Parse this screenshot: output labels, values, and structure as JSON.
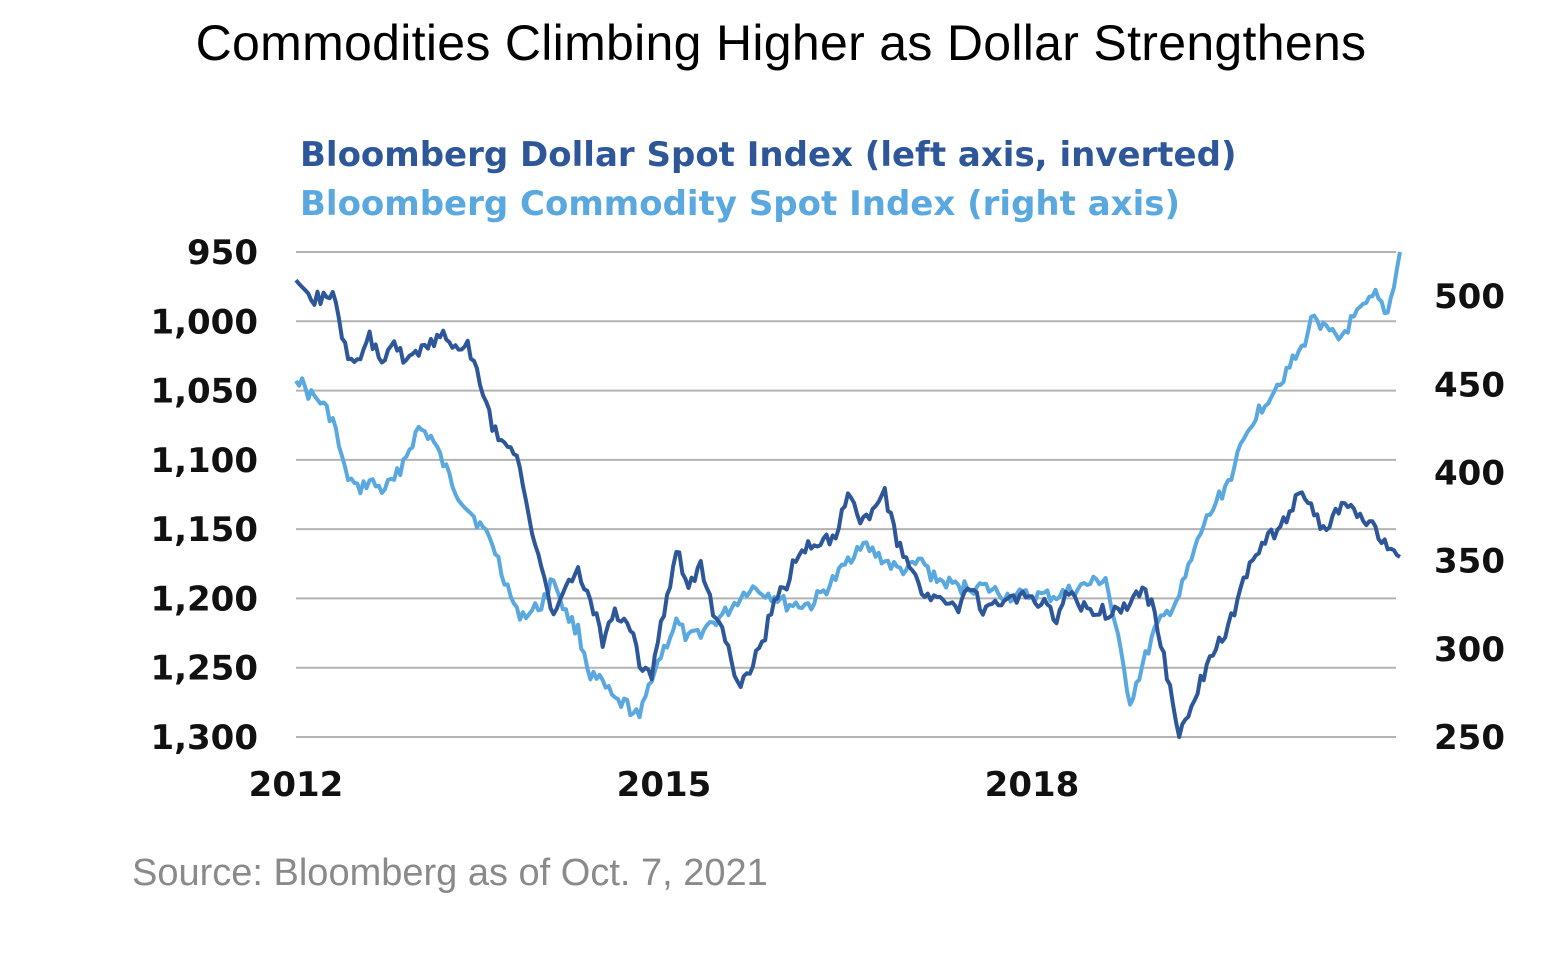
{
  "title": "Commodities Climbing Higher as Dollar Strengthens",
  "source": "Source: Bloomberg as of Oct. 7, 2021",
  "colors": {
    "dollar": "#2d5799",
    "commodity": "#5aa8e0",
    "grid": "#b3b3b3",
    "axis": "#888888"
  },
  "chart_data": {
    "type": "line",
    "title": "Commodities Climbing Higher as Dollar Strengthens",
    "x_tick_labels": [
      {
        "label": "2012",
        "value": 2012
      },
      {
        "label": "2015",
        "value": 2015
      },
      {
        "label": "2018",
        "value": 2018
      }
    ],
    "xlim": [
      2012.0,
      2021.0
    ],
    "left_axis": {
      "label": "Bloomberg Dollar Spot Index (left axis, inverted)",
      "inverted": true,
      "range": [
        950,
        1300
      ],
      "ticks": [
        950,
        1000,
        1050,
        1100,
        1150,
        1200,
        1250,
        1300
      ],
      "tick_labels": [
        "950",
        "1,000",
        "1,050",
        "1,100",
        "1,150",
        "1,200",
        "1,250",
        "1,300"
      ]
    },
    "right_axis": {
      "label": "Bloomberg Commodity Spot Index (right axis)",
      "range": [
        250,
        525
      ],
      "ticks": [
        250,
        300,
        350,
        400,
        450,
        500
      ],
      "tick_labels": [
        "250",
        "300",
        "350",
        "400",
        "450",
        "500"
      ]
    },
    "legend": [
      {
        "label": "Bloomberg Dollar Spot Index (left axis, inverted)",
        "series": "dollar"
      },
      {
        "label": "Bloomberg Commodity Spot Index (right axis)",
        "series": "commodity"
      }
    ],
    "series": [
      {
        "name": "Bloomberg Dollar Spot Index",
        "key": "dollar",
        "axis": "left",
        "x": [
          2012.0,
          2012.1,
          2012.3,
          2012.4,
          2012.5,
          2012.6,
          2012.7,
          2012.8,
          2012.9,
          2013.0,
          2013.2,
          2013.3,
          2013.4,
          2013.6,
          2013.8,
          2013.9,
          2014.0,
          2014.1,
          2014.3,
          2014.4,
          2014.5,
          2014.6,
          2014.7,
          2014.8,
          2014.9,
          2015.0,
          2015.1,
          2015.2,
          2015.3,
          2015.4,
          2015.5,
          2015.6,
          2015.8,
          2015.9,
          2016.0,
          2016.1,
          2016.3,
          2016.4,
          2016.5,
          2016.6,
          2016.7,
          2016.8,
          2016.9,
          2017.0,
          2017.1,
          2017.2,
          2017.4,
          2017.5,
          2017.6,
          2017.7,
          2017.9,
          2018.0,
          2018.1,
          2018.2,
          2018.3,
          2018.4,
          2018.6,
          2018.8,
          2018.9,
          2019.0,
          2019.2,
          2019.4,
          2019.6,
          2019.8,
          2019.9,
          2020.1,
          2020.2,
          2020.3,
          2020.4,
          2020.5,
          2020.6,
          2020.7,
          2020.8,
          2020.9,
          2021.0
        ],
        "values": [
          975,
          985,
          980,
          1020,
          1030,
          1010,
          1030,
          1015,
          1030,
          1020,
          1010,
          1020,
          1015,
          1075,
          1100,
          1140,
          1180,
          1210,
          1180,
          1200,
          1230,
          1210,
          1215,
          1245,
          1255,
          1210,
          1165,
          1190,
          1175,
          1210,
          1230,
          1265,
          1235,
          1200,
          1190,
          1165,
          1160,
          1155,
          1120,
          1145,
          1140,
          1125,
          1160,
          1175,
          1195,
          1200,
          1210,
          1190,
          1210,
          1205,
          1200,
          1200,
          1205,
          1215,
          1195,
          1205,
          1210,
          1205,
          1190,
          1210,
          1300,
          1255,
          1220,
          1170,
          1160,
          1140,
          1120,
          1140,
          1150,
          1135,
          1130,
          1145,
          1150,
          1160,
          1170
        ]
      },
      {
        "name": "Bloomberg Commodity Spot Index",
        "key": "commodity",
        "axis": "right",
        "x": [
          2012.0,
          2012.1,
          2012.2,
          2012.3,
          2012.4,
          2012.5,
          2012.6,
          2012.7,
          2012.8,
          2012.9,
          2013.0,
          2013.1,
          2013.2,
          2013.3,
          2013.4,
          2013.5,
          2013.6,
          2013.7,
          2013.8,
          2013.9,
          2014.0,
          2014.1,
          2014.2,
          2014.3,
          2014.4,
          2014.5,
          2014.6,
          2014.7,
          2014.8,
          2014.9,
          2015.0,
          2015.1,
          2015.2,
          2015.3,
          2015.5,
          2015.7,
          2015.9,
          2016.0,
          2016.2,
          2016.4,
          2016.5,
          2016.6,
          2016.7,
          2016.8,
          2016.9,
          2017.0,
          2017.1,
          2017.2,
          2017.4,
          2017.6,
          2017.8,
          2018.0,
          2018.2,
          2018.4,
          2018.6,
          2018.8,
          2019.0,
          2019.2,
          2019.3,
          2019.4,
          2019.6,
          2019.8,
          2020.0,
          2020.1,
          2020.2,
          2020.3,
          2020.4,
          2020.5,
          2020.6,
          2020.8,
          2020.9,
          2021.0
        ],
        "values": [
          455,
          445,
          440,
          430,
          400,
          390,
          395,
          390,
          395,
          410,
          425,
          420,
          405,
          390,
          380,
          370,
          360,
          340,
          320,
          320,
          325,
          340,
          320,
          310,
          285,
          280,
          270,
          268,
          260,
          285,
          300,
          315,
          305,
          310,
          320,
          335,
          330,
          325,
          325,
          340,
          350,
          360,
          355,
          350,
          345,
          345,
          350,
          340,
          335,
          335,
          330,
          330,
          330,
          335,
          340,
          270,
          310,
          330,
          350,
          370,
          395,
          430,
          450,
          460,
          470,
          490,
          480,
          475,
          485,
          500,
          490,
          525
        ]
      }
    ]
  }
}
